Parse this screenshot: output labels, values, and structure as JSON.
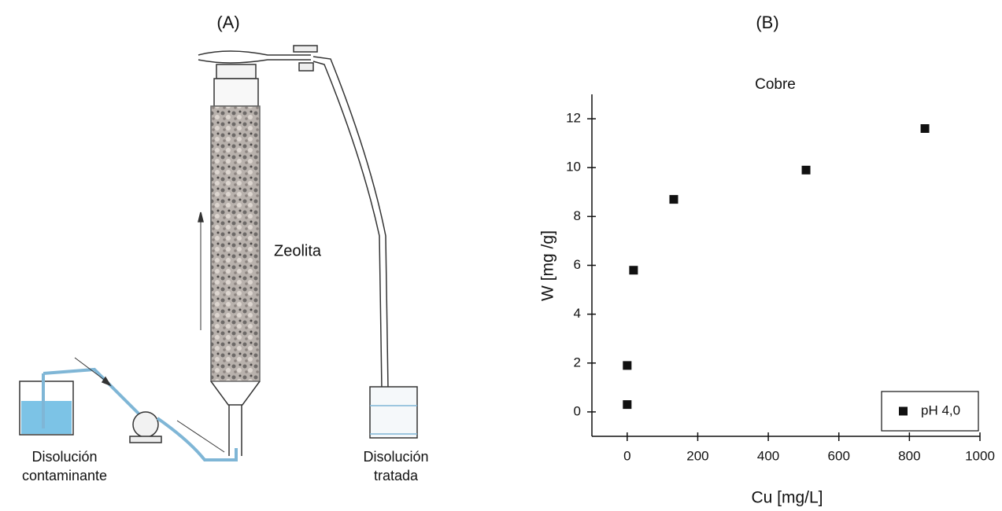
{
  "panel_a": {
    "label": "(A)",
    "column_label": "Zeolita",
    "source_label": [
      "Disolución",
      "contaminante"
    ],
    "outlet_label": [
      "Disolución",
      "tratada"
    ]
  },
  "chart_data": {
    "type": "scatter",
    "panel_label": "(B)",
    "title": "Cobre",
    "x_label": "Cu [mg/L]",
    "y_label": "W  [mg /g]",
    "series": [
      {
        "name": "pH 4,0",
        "color": "#111111",
        "x": [
          0,
          0,
          18,
          132,
          507,
          844
        ],
        "values": [
          0.3,
          1.9,
          5.8,
          8.7,
          9.9,
          11.6
        ]
      }
    ],
    "xlim": [
      -100,
      1000
    ],
    "ylim": [
      -1,
      13
    ],
    "xticks": [
      0,
      200,
      400,
      600,
      800,
      1000
    ],
    "yticks": [
      0,
      2,
      4,
      6,
      8,
      10,
      12
    ],
    "legend": "lower right",
    "grid": false
  }
}
